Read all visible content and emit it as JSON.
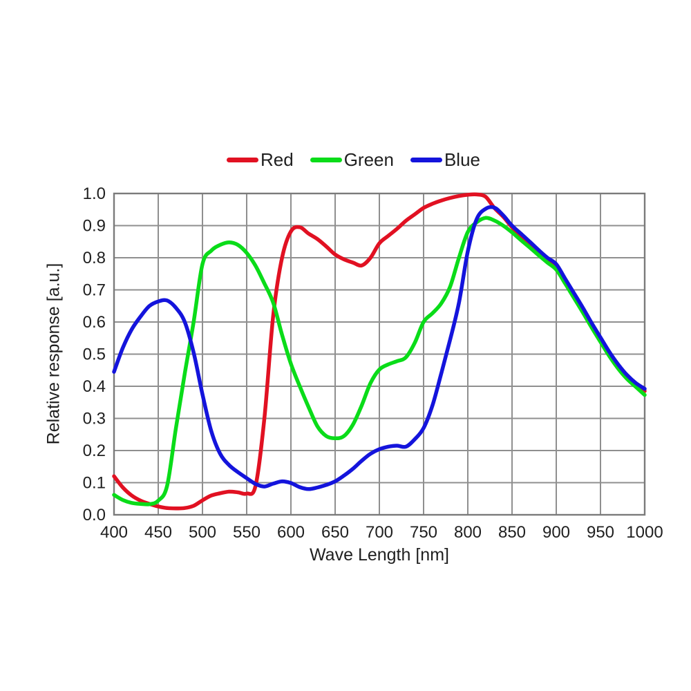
{
  "page": {
    "background": "#ffffff"
  },
  "legend": {
    "items": [
      {
        "label": "Red",
        "color": "#e11122"
      },
      {
        "label": "Green",
        "color": "#0adc19"
      },
      {
        "label": "Blue",
        "color": "#1414dc"
      }
    ]
  },
  "axes": {
    "x_title": "Wave Length [nm]",
    "y_title": "Relative response [a.u.]"
  },
  "chart_data": {
    "type": "line",
    "title": "",
    "xlabel": "Wave Length [nm]",
    "ylabel": "Relative response [a.u.]",
    "xlim": [
      400,
      1000
    ],
    "ylim": [
      0.0,
      1.0
    ],
    "grid": true,
    "legend_position": "top",
    "grid_color": "#8f8f8f",
    "border_color": "#7a7a7a",
    "x_ticks": [
      400,
      450,
      500,
      550,
      600,
      650,
      700,
      750,
      800,
      850,
      900,
      950,
      1000
    ],
    "y_ticks": [
      "0.0",
      "0.1",
      "0.2",
      "0.3",
      "0.4",
      "0.5",
      "0.6",
      "0.7",
      "0.8",
      "0.9",
      "1.0"
    ],
    "x": [
      400,
      410,
      420,
      430,
      440,
      450,
      460,
      470,
      480,
      490,
      500,
      510,
      520,
      530,
      540,
      550,
      560,
      570,
      580,
      590,
      600,
      610,
      620,
      630,
      640,
      650,
      660,
      670,
      680,
      690,
      700,
      710,
      720,
      730,
      740,
      750,
      760,
      770,
      780,
      790,
      800,
      810,
      820,
      830,
      840,
      850,
      860,
      870,
      880,
      890,
      900,
      910,
      920,
      930,
      940,
      950,
      960,
      970,
      980,
      990,
      1000
    ],
    "series": [
      {
        "name": "Red",
        "color": "#e11122",
        "values": [
          0.12,
          0.085,
          0.06,
          0.044,
          0.034,
          0.026,
          0.021,
          0.02,
          0.021,
          0.028,
          0.045,
          0.06,
          0.067,
          0.072,
          0.07,
          0.066,
          0.09,
          0.3,
          0.62,
          0.8,
          0.882,
          0.895,
          0.875,
          0.858,
          0.835,
          0.81,
          0.795,
          0.785,
          0.776,
          0.8,
          0.845,
          0.868,
          0.89,
          0.915,
          0.935,
          0.955,
          0.968,
          0.978,
          0.986,
          0.992,
          0.996,
          0.997,
          0.99,
          0.955,
          0.928,
          0.895,
          0.868,
          0.843,
          0.818,
          0.793,
          0.77,
          0.728,
          0.683,
          0.637,
          0.59,
          0.545,
          0.5,
          0.462,
          0.43,
          0.405,
          0.385
        ]
      },
      {
        "name": "Green",
        "color": "#0adc19",
        "values": [
          0.062,
          0.046,
          0.037,
          0.034,
          0.033,
          0.044,
          0.09,
          0.27,
          0.44,
          0.6,
          0.78,
          0.822,
          0.84,
          0.848,
          0.84,
          0.815,
          0.775,
          0.72,
          0.66,
          0.56,
          0.47,
          0.4,
          0.335,
          0.275,
          0.245,
          0.238,
          0.245,
          0.28,
          0.34,
          0.41,
          0.452,
          0.468,
          0.478,
          0.49,
          0.535,
          0.6,
          0.627,
          0.658,
          0.71,
          0.8,
          0.88,
          0.91,
          0.924,
          0.916,
          0.9,
          0.879,
          0.855,
          0.832,
          0.808,
          0.785,
          0.763,
          0.72,
          0.675,
          0.63,
          0.583,
          0.538,
          0.494,
          0.455,
          0.423,
          0.398,
          0.373
        ]
      },
      {
        "name": "Blue",
        "color": "#1414dc",
        "values": [
          0.445,
          0.52,
          0.577,
          0.617,
          0.65,
          0.664,
          0.667,
          0.644,
          0.6,
          0.505,
          0.375,
          0.26,
          0.19,
          0.155,
          0.133,
          0.114,
          0.096,
          0.088,
          0.097,
          0.104,
          0.099,
          0.086,
          0.08,
          0.085,
          0.093,
          0.104,
          0.122,
          0.143,
          0.168,
          0.19,
          0.204,
          0.212,
          0.215,
          0.212,
          0.235,
          0.27,
          0.34,
          0.44,
          0.545,
          0.66,
          0.82,
          0.92,
          0.952,
          0.956,
          0.932,
          0.9,
          0.875,
          0.85,
          0.824,
          0.8,
          0.78,
          0.735,
          0.69,
          0.645,
          0.597,
          0.552,
          0.507,
          0.468,
          0.435,
          0.41,
          0.392
        ]
      }
    ]
  }
}
